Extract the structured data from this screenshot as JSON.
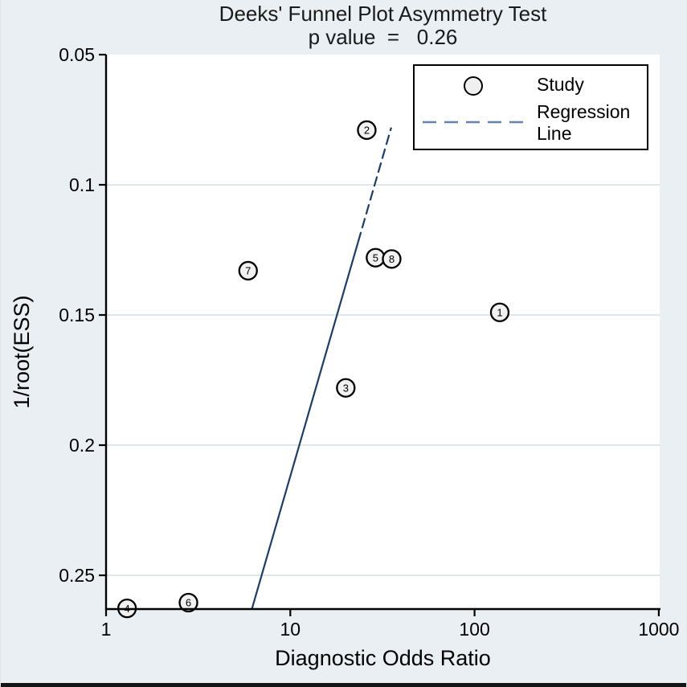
{
  "window": {
    "background_color": "#e9eff2",
    "plot_background_color": "#ffffff"
  },
  "chart_data": {
    "type": "scatter",
    "title": "Deeks' Funnel Plot Asymmetry Test",
    "subtitle": "p value  =   0.26",
    "p_value": 0.26,
    "xlabel": "Diagnostic Odds Ratio",
    "ylabel": "1/root(ESS)",
    "x_scale": "log10",
    "y_axis_reversed": true,
    "xlim": [
      1,
      1000
    ],
    "ylim": [
      0.05,
      0.2627
    ],
    "x_ticks": [
      1,
      10,
      100,
      1000
    ],
    "x_tick_labels": [
      "1",
      "10",
      "100",
      "1000"
    ],
    "y_ticks": [
      0.05,
      0.1,
      0.15,
      0.2,
      0.25
    ],
    "y_tick_labels": [
      "0.05",
      "0.1",
      "0.15",
      "0.2",
      "0.25"
    ],
    "grid_y": [
      0.1,
      0.15,
      0.2,
      0.25
    ],
    "grid_on": true,
    "points": [
      {
        "id": "1",
        "dor": 137,
        "inv_root_ess": 0.149
      },
      {
        "id": "2",
        "dor": 26,
        "inv_root_ess": 0.079
      },
      {
        "id": "3",
        "dor": 20,
        "inv_root_ess": 0.178
      },
      {
        "id": "4",
        "dor": 1.3,
        "inv_root_ess": 0.2627
      },
      {
        "id": "5",
        "dor": 29,
        "inv_root_ess": 0.128
      },
      {
        "id": "6",
        "dor": 2.8,
        "inv_root_ess": 0.2605
      },
      {
        "id": "7",
        "dor": 5.9,
        "inv_root_ess": 0.133
      },
      {
        "id": "8",
        "dor": 35.5,
        "inv_root_ess": 0.1285
      }
    ],
    "regression_line": {
      "dor_start": 6.2,
      "y_start": 0.2627,
      "dor_end": 35.3,
      "y_end": 0.078,
      "dashed_above_y": 0.122
    },
    "legend": [
      {
        "marker": "circle",
        "label": "Study"
      },
      {
        "marker": "dashed-line",
        "label": "Regression Line"
      }
    ],
    "legend_position": "top-right",
    "colors": {
      "regression_line": "#1f3c61",
      "legend_dash": "#6584a7",
      "marker_fill": "#f1f1f1",
      "marker_stroke": "#000000",
      "gridline": "#dce8ec",
      "axis": "#000000"
    }
  }
}
